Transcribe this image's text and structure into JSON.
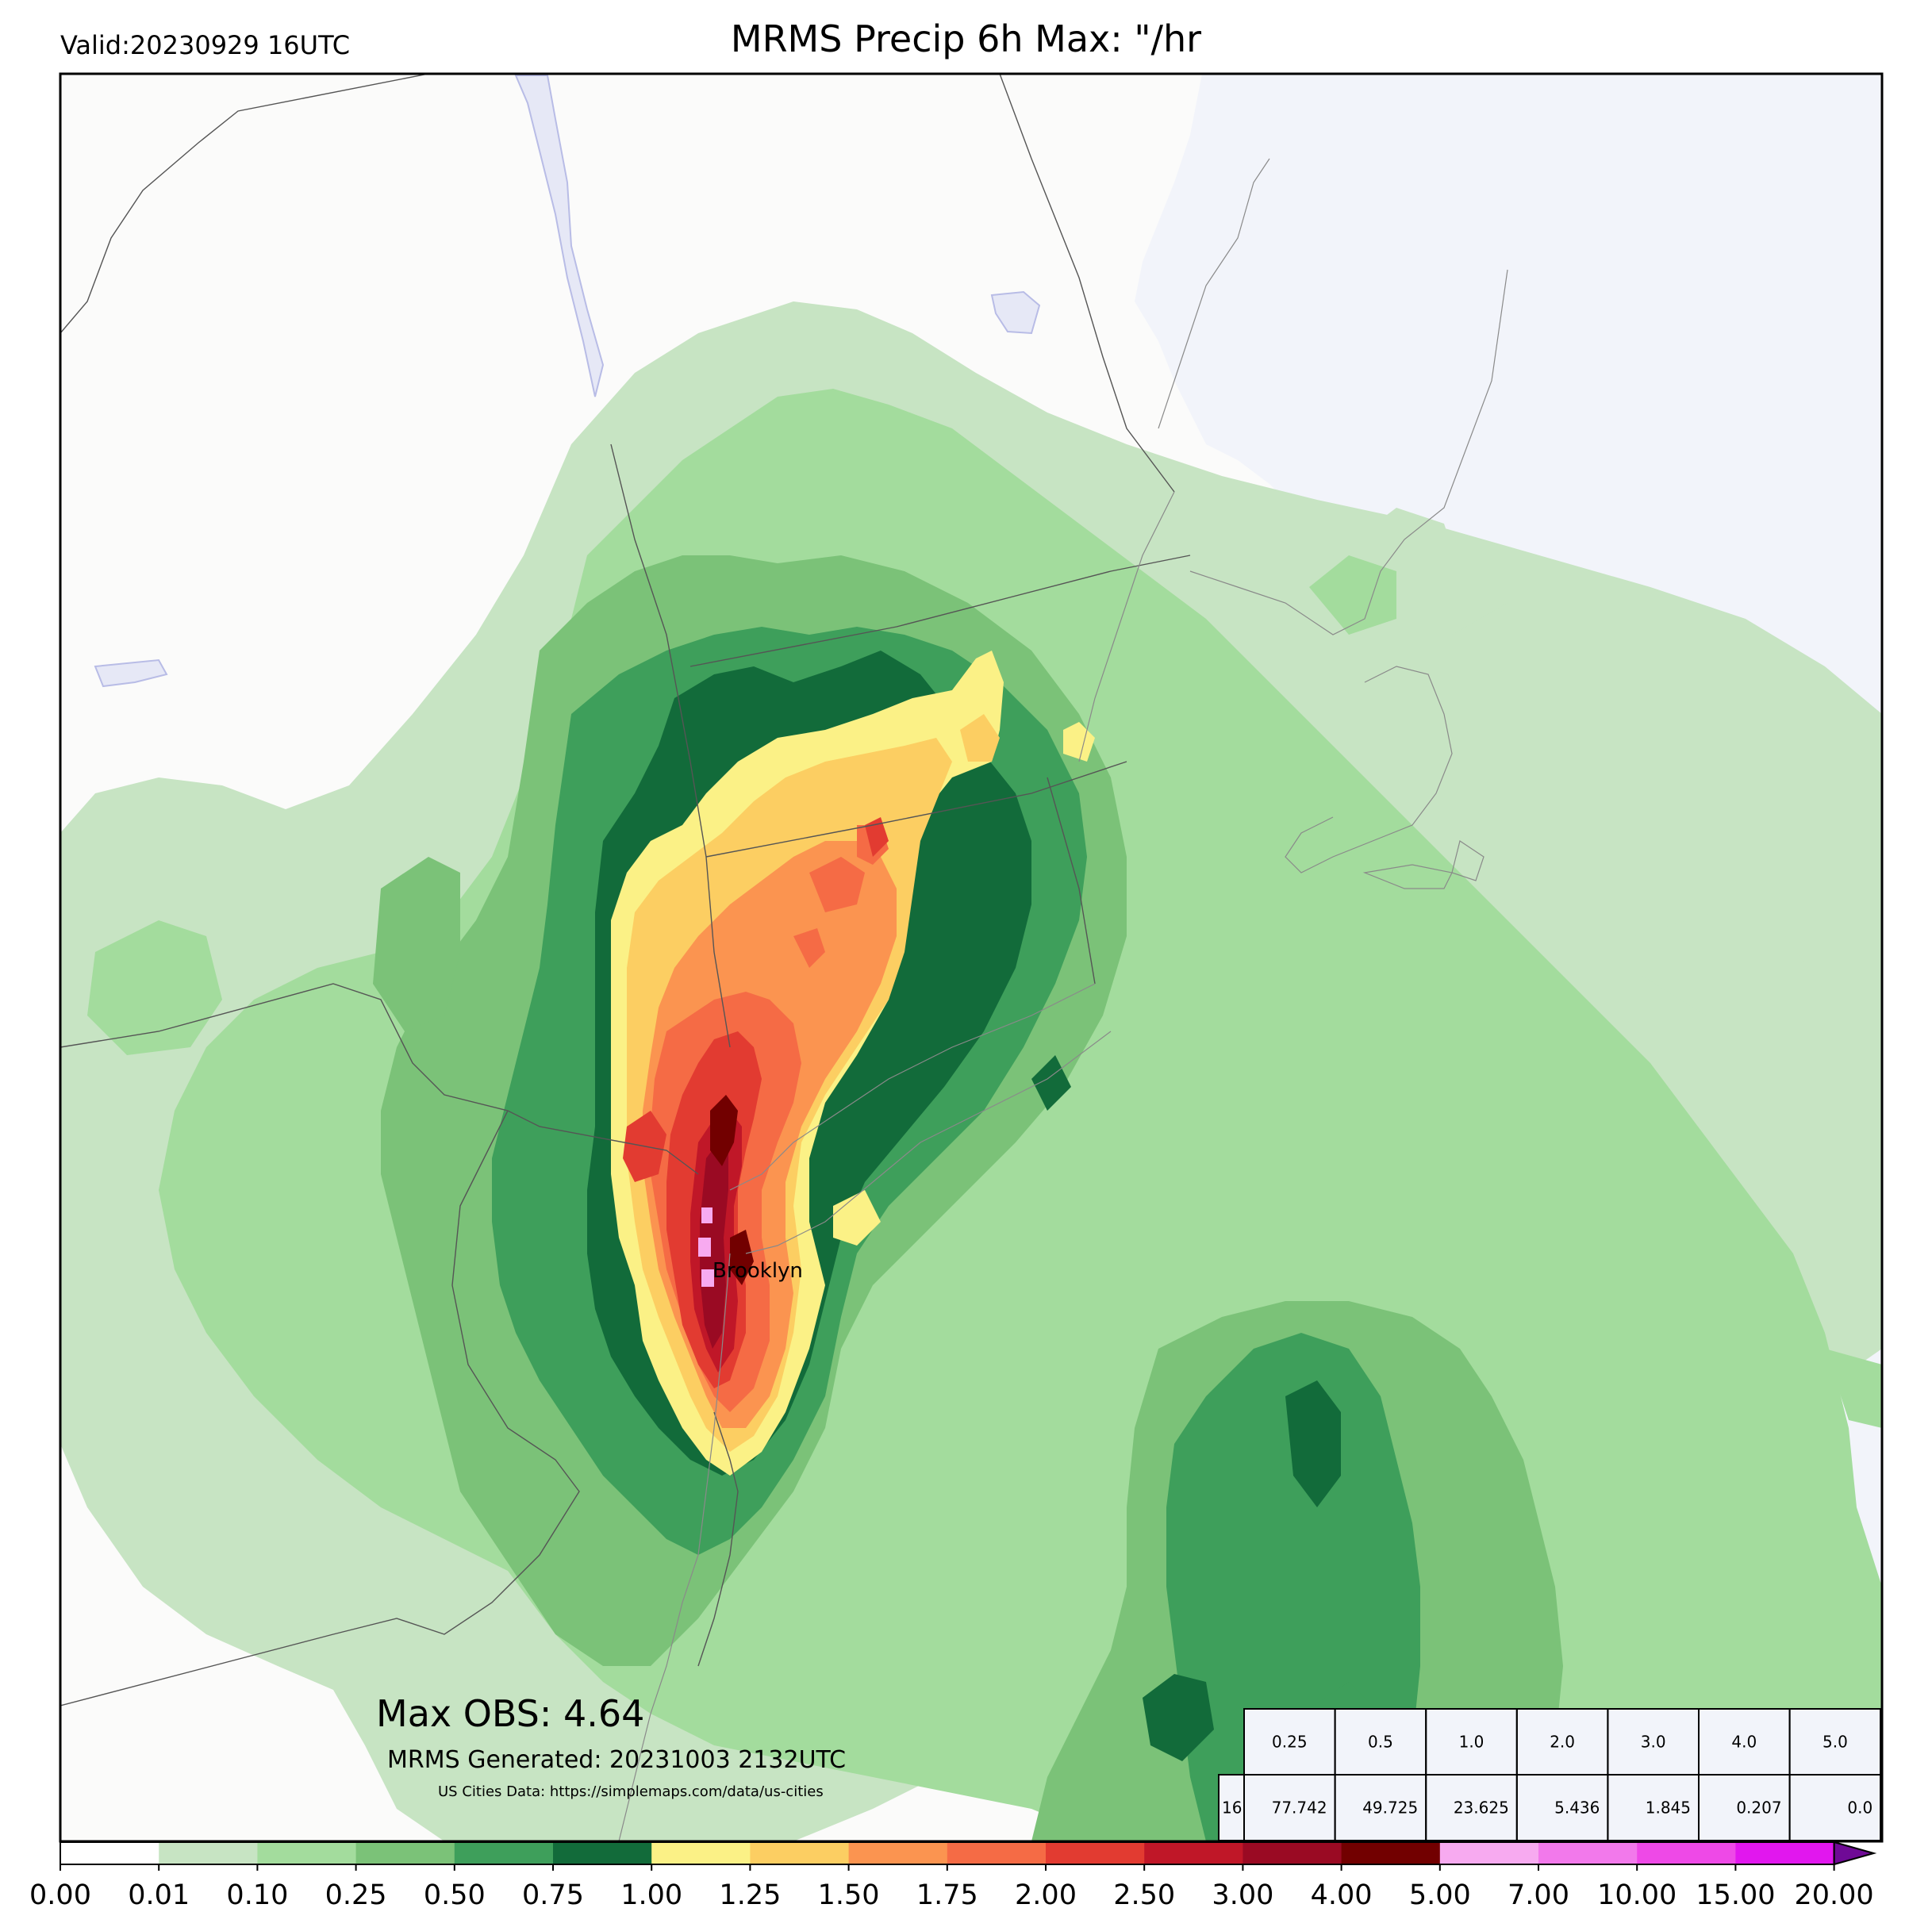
{
  "title": "MRMS Precip 6h Max: \"/hr",
  "valid": "Valid:20230929 16UTC",
  "max_obs": "Max OBS: 4.64",
  "generated": "MRMS Generated: 20231003 2132UTC",
  "source": "US Cities Data: https://simplemaps.com/data/us-cities",
  "city_label": "Brooklyn",
  "colors": {
    "land": "#fbfbfa",
    "water": "#f2f4fa",
    "lake": "#e6e8f6"
  },
  "threshold_table": {
    "headers": [
      "0.25",
      "0.5",
      "1.0",
      "2.0",
      "3.0",
      "4.0",
      "5.0"
    ],
    "row_label": "16",
    "values": [
      "77.742",
      "49.725",
      "23.625",
      "5.436",
      "1.845",
      "0.207",
      "0.0"
    ]
  },
  "colorbar": {
    "ticks": [
      "0.00",
      "0.01",
      "0.10",
      "0.25",
      "0.50",
      "0.75",
      "1.00",
      "1.25",
      "1.50",
      "1.75",
      "2.00",
      "2.50",
      "3.00",
      "4.00",
      "5.00",
      "7.00",
      "10.00",
      "15.00",
      "20.00"
    ],
    "colors": [
      "#ffffff",
      "#c7e4c3",
      "#a3dc9d",
      "#7bc278",
      "#3e9f5b",
      "#126b3a",
      "#fbf186",
      "#fcce62",
      "#fb9450",
      "#f56b45",
      "#e23b31",
      "#c01728",
      "#9a0a23",
      "#720000",
      "#f7aaf0",
      "#f279eb",
      "#ee49e7",
      "#e117ee",
      "#a010d6",
      "#6f0a96"
    ]
  }
}
